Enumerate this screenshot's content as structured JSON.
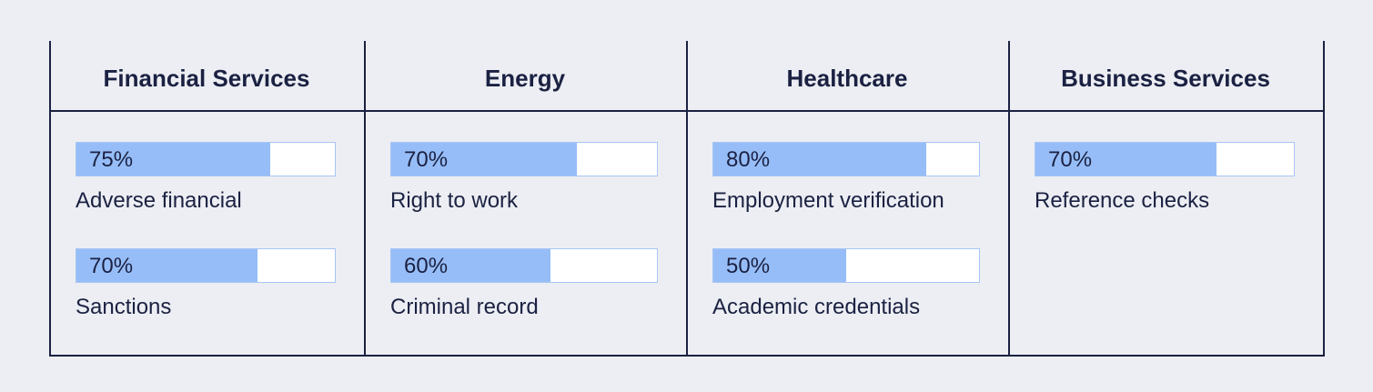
{
  "xlim": [
    0,
    100
  ],
  "columns": [
    {
      "header": "Financial Services",
      "items": [
        {
          "value": 75,
          "value_label": "75%",
          "label": "Adverse financial"
        },
        {
          "value": 70,
          "value_label": "70%",
          "label": "Sanctions"
        }
      ]
    },
    {
      "header": "Energy",
      "items": [
        {
          "value": 70,
          "value_label": "70%",
          "label": "Right to work"
        },
        {
          "value": 60,
          "value_label": "60%",
          "label": "Criminal record"
        }
      ]
    },
    {
      "header": "Healthcare",
      "items": [
        {
          "value": 80,
          "value_label": "80%",
          "label": "Employment verification"
        },
        {
          "value": 50,
          "value_label": "50%",
          "label": "Academic credentials"
        }
      ]
    },
    {
      "header": "Business Services",
      "items": [
        {
          "value": 70,
          "value_label": "70%",
          "label": "Reference checks"
        }
      ]
    }
  ]
}
